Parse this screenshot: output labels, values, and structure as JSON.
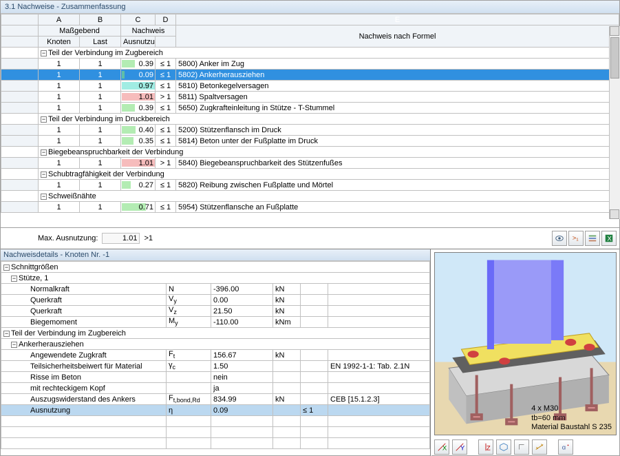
{
  "window": {
    "title": "3.1 Nachweise - Zusammenfassung"
  },
  "columns": {
    "letters": [
      "A",
      "B",
      "C",
      "D",
      "E"
    ],
    "group_massgebend": "Maßgebend",
    "group_nachweis": "Nachweis",
    "A": "Knoten",
    "B": "Last",
    "C": "Ausnutzung",
    "D": "",
    "E": "Nachweis nach Formel"
  },
  "groups": [
    {
      "title": "Teil der Verbindung im Zugbereich",
      "rows": [
        {
          "k": "1",
          "l": "1",
          "u": 0.39,
          "cmp": "≤ 1",
          "bar": "green",
          "desc": "5800) Anker im Zug"
        },
        {
          "k": "1",
          "l": "1",
          "u": 0.09,
          "cmp": "≤ 1",
          "bar": "green",
          "desc": "5802) Ankerherausziehen",
          "selected": true
        },
        {
          "k": "1",
          "l": "1",
          "u": 0.97,
          "cmp": "≤ 1",
          "bar": "cyan",
          "desc": "5810) Betonkegelversagen"
        },
        {
          "k": "1",
          "l": "1",
          "u": 1.01,
          "cmp": "> 1",
          "bar": "red",
          "desc": "5811) Spaltversagen"
        },
        {
          "k": "1",
          "l": "1",
          "u": 0.39,
          "cmp": "≤ 1",
          "bar": "green",
          "desc": "5650) Zugkrafteinleitung in Stütze - T-Stummel"
        }
      ]
    },
    {
      "title": "Teil der Verbindung im Druckbereich",
      "rows": [
        {
          "k": "1",
          "l": "1",
          "u": 0.4,
          "cmp": "≤ 1",
          "bar": "green",
          "desc": "5200) Stützenflansch im Druck"
        },
        {
          "k": "1",
          "l": "1",
          "u": 0.35,
          "cmp": "≤ 1",
          "bar": "green",
          "desc": "5814) Beton unter der Fußplatte im Druck"
        }
      ]
    },
    {
      "title": "Biegebeanspruchbarkeit der Verbindung",
      "rows": [
        {
          "k": "1",
          "l": "1",
          "u": 1.01,
          "cmp": "> 1",
          "bar": "red",
          "desc": "5840) Biegebeanspruchbarkeit des Stützenfußes"
        }
      ]
    },
    {
      "title": "Schubtragfähigkeit der Verbindung",
      "rows": [
        {
          "k": "1",
          "l": "1",
          "u": 0.27,
          "cmp": "≤ 1",
          "bar": "green",
          "desc": "5820) Reibung zwischen Fußplatte und Mörtel"
        }
      ]
    },
    {
      "title": "Schweißnähte",
      "rows": [
        {
          "k": "1",
          "l": "1",
          "u": 0.71,
          "cmp": "≤ 1",
          "bar": "green",
          "desc": "5954) Stützenflansche an Fußplatte"
        }
      ]
    }
  ],
  "footer": {
    "label": "Max. Ausnutzung:",
    "value": "1.01",
    "cmp": ">1"
  },
  "details": {
    "title": "Nachweisdetails - Knoten Nr. -1",
    "sec_schnitt": "Schnittgrößen",
    "sec_stuetze": "Stütze, 1",
    "rows_forces": [
      {
        "n": "Normalkraft",
        "sym": "N",
        "v": "-396.00",
        "u": "kN"
      },
      {
        "n": "Querkraft",
        "sym": "V<sub>y</sub>",
        "v": "0.00",
        "u": "kN"
      },
      {
        "n": "Querkraft",
        "sym": "V<sub>z</sub>",
        "v": "21.50",
        "u": "kN"
      },
      {
        "n": "Biegemoment",
        "sym": "M<sub>y</sub>",
        "v": "-110.00",
        "u": "kNm"
      }
    ],
    "sec_zug": "Teil der Verbindung im Zugbereich",
    "sec_anker": "Ankerherausziehen",
    "rows_anker": [
      {
        "n": "Angewendete Zugkraft",
        "sym": "F<sub>t</sub>",
        "v": "156.67",
        "u": "kN",
        "c": "",
        "r": ""
      },
      {
        "n": "Teilsicherheitsbeiwert für Material",
        "sym": "γ<sub>c</sub>",
        "v": "1.50",
        "u": "",
        "c": "",
        "r": "EN 1992-1-1: Tab. 2.1N"
      },
      {
        "n": "Risse im Beton",
        "sym": "",
        "v": "nein",
        "u": "",
        "c": "",
        "r": ""
      },
      {
        "n": "mit rechteckigem Kopf",
        "sym": "",
        "v": "ja",
        "u": "",
        "c": "",
        "r": ""
      },
      {
        "n": "Auszugswiderstand des Ankers",
        "sym": "F<sub>t,bond,Rd</sub>",
        "v": "834.99",
        "u": "kN",
        "c": "",
        "r": "CEB [15.1.2.3]"
      },
      {
        "n": "Ausnutzung",
        "sym": "η",
        "v": "0.09",
        "u": "",
        "c": "≤ 1",
        "r": "",
        "hl": true
      }
    ]
  },
  "viewer": {
    "bg_sky": "#d0e8f8",
    "bg_ground": "#e8d8b0",
    "colors": {
      "column": "#6a6af8",
      "plate": "#f0e060",
      "bolt": "#d04040",
      "concrete": "#d8d8d8",
      "anchor": "#d89090"
    },
    "info": [
      "4 x M30",
      "tb=60 mm",
      "Material Baustahl S 235"
    ]
  }
}
